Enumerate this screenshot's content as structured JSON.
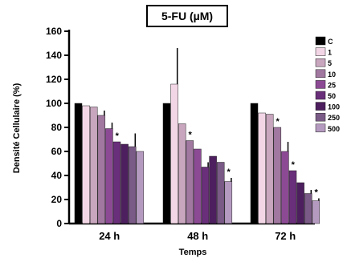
{
  "chart_data": {
    "type": "bar",
    "title": "5-FU (µM)",
    "xlabel": "Temps",
    "ylabel": "Densité Cellulaire (%)",
    "ylim": [
      0,
      160
    ],
    "yticks": [
      0,
      20,
      40,
      60,
      80,
      100,
      120,
      140,
      160
    ],
    "categories": [
      "24 h",
      "48 h",
      "72 h"
    ],
    "legend_position": "right",
    "series": [
      {
        "name": "C",
        "color": "#000000",
        "values": [
          100,
          100,
          100
        ],
        "errors": [
          0,
          0,
          0
        ],
        "sig": [
          "",
          "",
          ""
        ]
      },
      {
        "name": "1",
        "color": "#f2d6e6",
        "values": [
          98,
          116,
          92
        ],
        "errors": [
          0,
          30,
          0
        ],
        "sig": [
          "",
          "",
          ""
        ]
      },
      {
        "name": "5",
        "color": "#c8a6be",
        "values": [
          97,
          83,
          91
        ],
        "errors": [
          0,
          0,
          0
        ],
        "sig": [
          "",
          "",
          ""
        ]
      },
      {
        "name": "10",
        "color": "#a178a0",
        "values": [
          90,
          69,
          80
        ],
        "errors": [
          4,
          0,
          0
        ],
        "sig": [
          "",
          "*",
          "*"
        ]
      },
      {
        "name": "25",
        "color": "#8c4a94",
        "values": [
          79,
          62,
          60
        ],
        "errors": [
          5,
          0,
          8
        ],
        "sig": [
          "",
          "",
          ""
        ]
      },
      {
        "name": "50",
        "color": "#6a2f7a",
        "values": [
          68,
          47,
          44
        ],
        "errors": [
          0,
          4,
          0
        ],
        "sig": [
          "*",
          "",
          "*"
        ]
      },
      {
        "name": "100",
        "color": "#4d1f5e",
        "values": [
          66,
          56,
          34
        ],
        "errors": [
          0,
          0,
          0
        ],
        "sig": [
          "",
          "",
          ""
        ]
      },
      {
        "name": "250",
        "color": "#7a5a86",
        "values": [
          64,
          51,
          25
        ],
        "errors": [
          11,
          0,
          3
        ],
        "sig": [
          "",
          "",
          ""
        ]
      },
      {
        "name": "500",
        "color": "#b59ac0",
        "values": [
          60,
          35,
          19
        ],
        "errors": [
          0,
          3,
          2
        ],
        "sig": [
          "",
          "*",
          "*"
        ]
      }
    ]
  }
}
